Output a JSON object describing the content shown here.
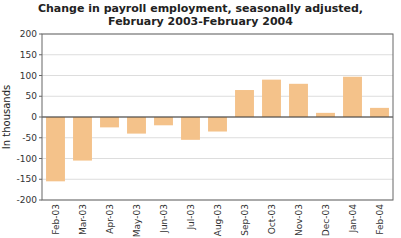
{
  "chart_data": {
    "type": "bar",
    "title": "Change in payroll employment, seasonally adjusted,",
    "subtitle": "February 2003-February 2004",
    "y_label": "In thousands",
    "categories": [
      "Feb-03",
      "Mar-03",
      "Apr-03",
      "May-03",
      "Jun-03",
      "Jul-03",
      "Aug-03",
      "Sep-03",
      "Oct-03",
      "Nov-03",
      "Dec-03",
      "Jan-04",
      "Feb-04"
    ],
    "values": [
      -155,
      -105,
      -25,
      -40,
      -20,
      -55,
      -35,
      65,
      90,
      80,
      10,
      97,
      22
    ],
    "color": "#F4C28A",
    "ylim": [
      -200,
      200
    ],
    "yticks": [
      -200,
      -150,
      -100,
      -50,
      0,
      50,
      100,
      150,
      200
    ],
    "grid": true
  }
}
